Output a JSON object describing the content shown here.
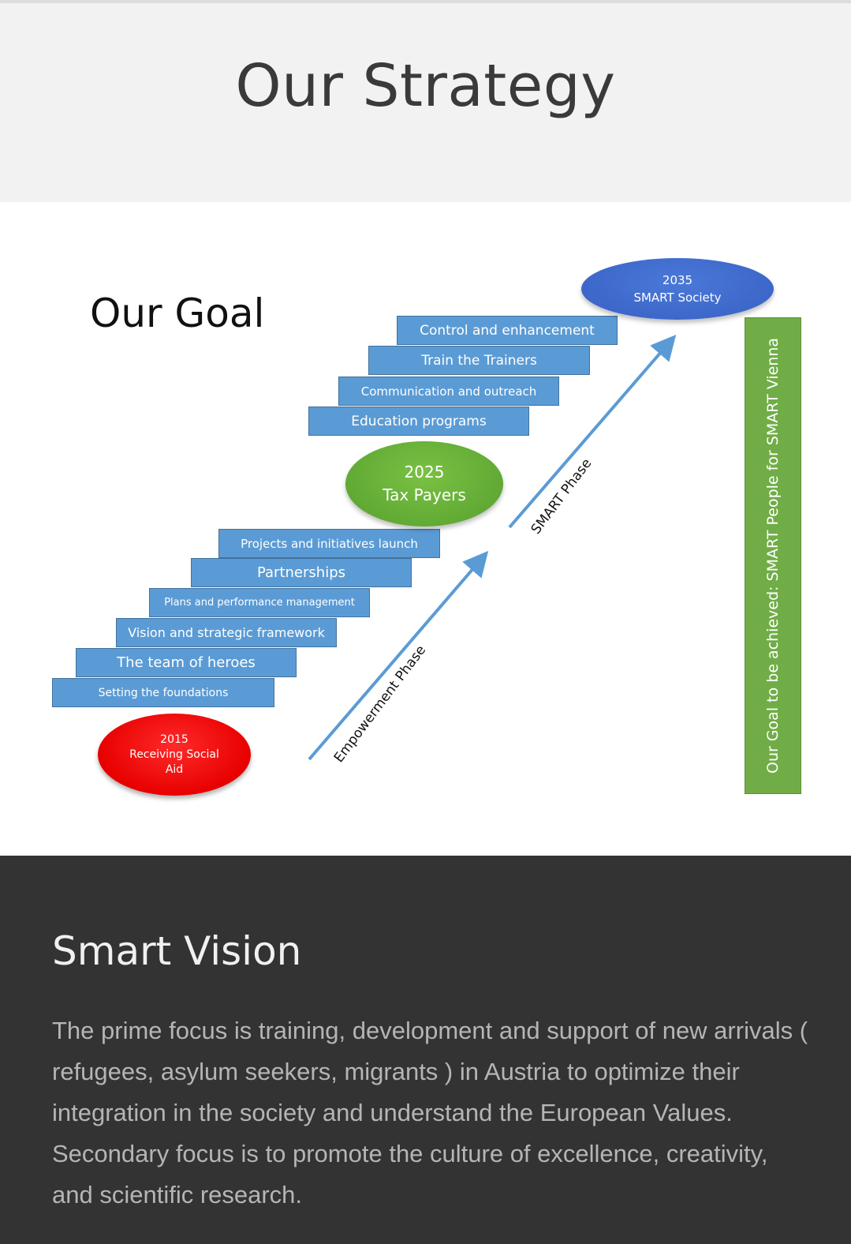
{
  "header": {
    "title": "Our Strategy"
  },
  "diagram": {
    "goal_title": "Our Goal",
    "milestones": {
      "y2015": {
        "year": "2015",
        "label": "Receiving Social Aid",
        "line1": "Receiving Social",
        "line2": "Aid"
      },
      "y2025": {
        "year": "2025",
        "label": "Tax Payers"
      },
      "y2035": {
        "year": "2035",
        "label": "SMART Society"
      }
    },
    "steps_lower": [
      "Setting the foundations",
      "The team of heroes",
      "Vision and strategic framework",
      "Plans and performance management",
      "Partnerships",
      "Projects and initiatives launch"
    ],
    "steps_upper": [
      "Education programs",
      "Communication and outreach",
      "Train the Trainers",
      "Control and enhancement"
    ],
    "phases": {
      "empowerment": "Empowerment Phase",
      "smart": "SMART Phase"
    },
    "goal_bar": "Our Goal to be achieved: SMART People for SMART Vienna",
    "colors": {
      "step": "#5b9bd5",
      "red": "#e80000",
      "green": "#70ad47",
      "blue": "#3c66c9",
      "arrow": "#5b9bd5"
    }
  },
  "vision": {
    "title": "Smart Vision",
    "text": "The prime focus is training, development and support of new arrivals ( refugees, asylum seekers, migrants ) in Austria to optimize their integration in the society and understand the European Values. Secondary focus is to promote the culture of excellence, creativity, and scientific research."
  }
}
